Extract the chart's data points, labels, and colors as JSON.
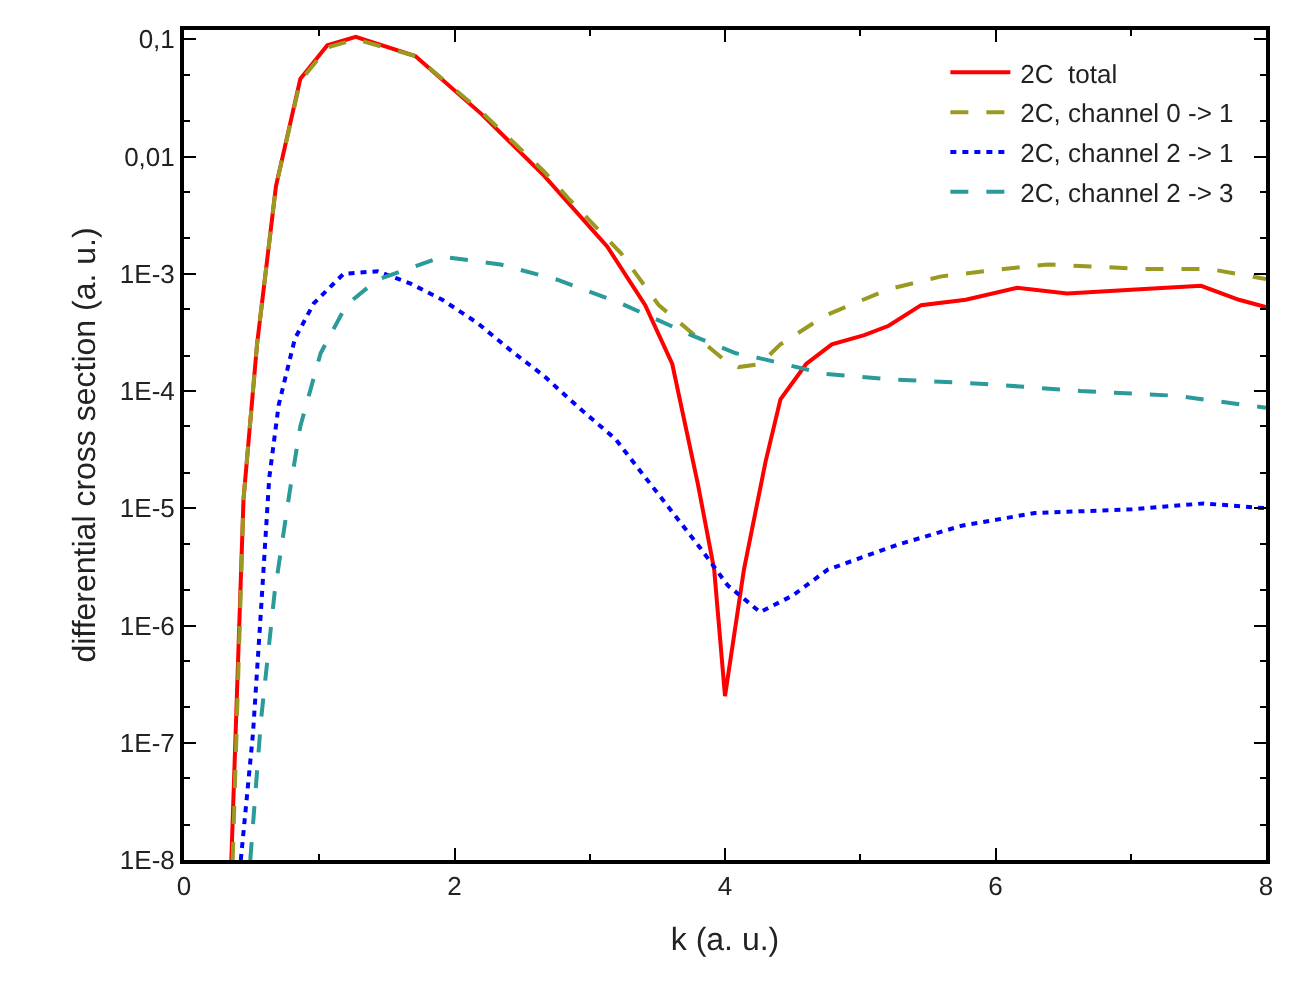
{
  "chart_data": {
    "type": "line",
    "xlabel": "k (a. u.)",
    "ylabel": "differential cross section (a. u.)",
    "log": "y",
    "xlim": [
      0,
      8
    ],
    "xticks": [
      0,
      2,
      4,
      6,
      8
    ],
    "ylim": [
      1e-08,
      0.12
    ],
    "yticks": [
      {
        "value": 0.1,
        "label": "0,1"
      },
      {
        "value": 0.01,
        "label": "0,01"
      },
      {
        "value": 0.001,
        "label": "1E-3"
      },
      {
        "value": 0.0001,
        "label": "1E-4"
      },
      {
        "value": 1e-05,
        "label": "1E-5"
      },
      {
        "value": 1e-06,
        "label": "1E-6"
      },
      {
        "value": 1e-07,
        "label": "1E-7"
      },
      {
        "value": 1e-08,
        "label": "1E-8"
      }
    ],
    "grid": false,
    "legend": "top right",
    "marker": "none",
    "series": [
      {
        "name": "2C  total",
        "color": "#ff0000",
        "line_style": "solid",
        "x": [
          0.35,
          0.44,
          0.54,
          0.68,
          0.86,
          1.06,
          1.27,
          1.71,
          2.2,
          2.66,
          3.13,
          3.41,
          3.61,
          3.8,
          3.92,
          4.0,
          4.14,
          4.3,
          4.41,
          4.6,
          4.79,
          5.03,
          5.21,
          5.45,
          5.78,
          6.16,
          6.53,
          7.1,
          7.52,
          7.8,
          8
        ],
        "values": [
          1e-08,
          1.2e-05,
          0.00025,
          0.0056,
          0.046,
          0.089,
          0.105,
          0.072,
          0.023,
          0.0069,
          0.0017,
          0.00054,
          0.00017,
          1.6e-05,
          3e-06,
          2.5e-07,
          3e-06,
          2.5e-05,
          8.5e-05,
          0.00017,
          0.00025,
          0.0003,
          0.00036,
          0.00054,
          0.0006,
          0.00076,
          0.00068,
          0.00074,
          0.00079,
          0.0006,
          0.00052
        ]
      },
      {
        "name": "2C, channel 0 -> 1",
        "color": "#9a9a22",
        "line_style": "dashed",
        "x": [
          0.36,
          0.44,
          0.54,
          0.68,
          0.86,
          1.06,
          1.27,
          1.71,
          2.2,
          2.66,
          2.85,
          3.23,
          3.51,
          3.98,
          4.1,
          4.26,
          4.41,
          4.74,
          5.21,
          5.6,
          6.06,
          6.39,
          7.1,
          7.58,
          8
        ],
        "values": [
          1e-08,
          1.2e-05,
          0.00025,
          0.0056,
          0.044,
          0.085,
          0.1,
          0.072,
          0.024,
          0.0075,
          0.0043,
          0.0015,
          0.00054,
          0.00019,
          0.00016,
          0.00017,
          0.00025,
          0.00044,
          0.00074,
          0.00095,
          0.0011,
          0.0012,
          0.0011,
          0.0011,
          0.0009
        ]
      },
      {
        "name": "2C, channel 2 -> 1",
        "color": "#0000ff",
        "line_style": "dotted",
        "x": [
          0.42,
          0.51,
          0.57,
          0.63,
          0.7,
          0.82,
          0.96,
          1.18,
          1.43,
          1.67,
          1.91,
          2.17,
          2.42,
          2.66,
          2.92,
          3.19,
          3.4,
          3.81,
          4.02,
          4.26,
          4.5,
          4.76,
          5.28,
          5.75,
          6.29,
          7.01,
          7.54,
          8
        ],
        "values": [
          1e-08,
          1.2e-07,
          1.4e-06,
          1.8e-05,
          7.6e-05,
          0.00028,
          0.00056,
          0.001,
          0.00105,
          0.00083,
          0.0006,
          0.00038,
          0.00022,
          0.000135,
          7.2e-05,
          3.9e-05,
          1.9e-05,
          4.7e-06,
          2.2e-06,
          1.3e-06,
          1.8e-06,
          3e-06,
          4.9e-06,
          7.1e-06,
          9.1e-06,
          9.8e-06,
          1.1e-05,
          1e-05
        ]
      },
      {
        "name": "2C, channel 2 -> 3",
        "color": "#2a9a9a",
        "line_style": "dashed",
        "x": [
          0.49,
          0.57,
          0.67,
          0.78,
          0.86,
          1.01,
          1.2,
          1.43,
          1.91,
          2.34,
          2.76,
          3.23,
          3.75,
          4.08,
          4.26,
          4.74,
          5.21,
          5.92,
          6.63,
          7.34,
          8
        ],
        "values": [
          1e-08,
          1.6e-07,
          1.9e-06,
          1.35e-05,
          5e-05,
          0.00021,
          0.00054,
          0.00089,
          0.0014,
          0.0012,
          0.00089,
          0.00056,
          0.0003,
          0.00021,
          0.00019,
          0.00014,
          0.000126,
          0.000115,
          0.0001,
          9.1e-05,
          7.2e-05
        ]
      }
    ]
  }
}
